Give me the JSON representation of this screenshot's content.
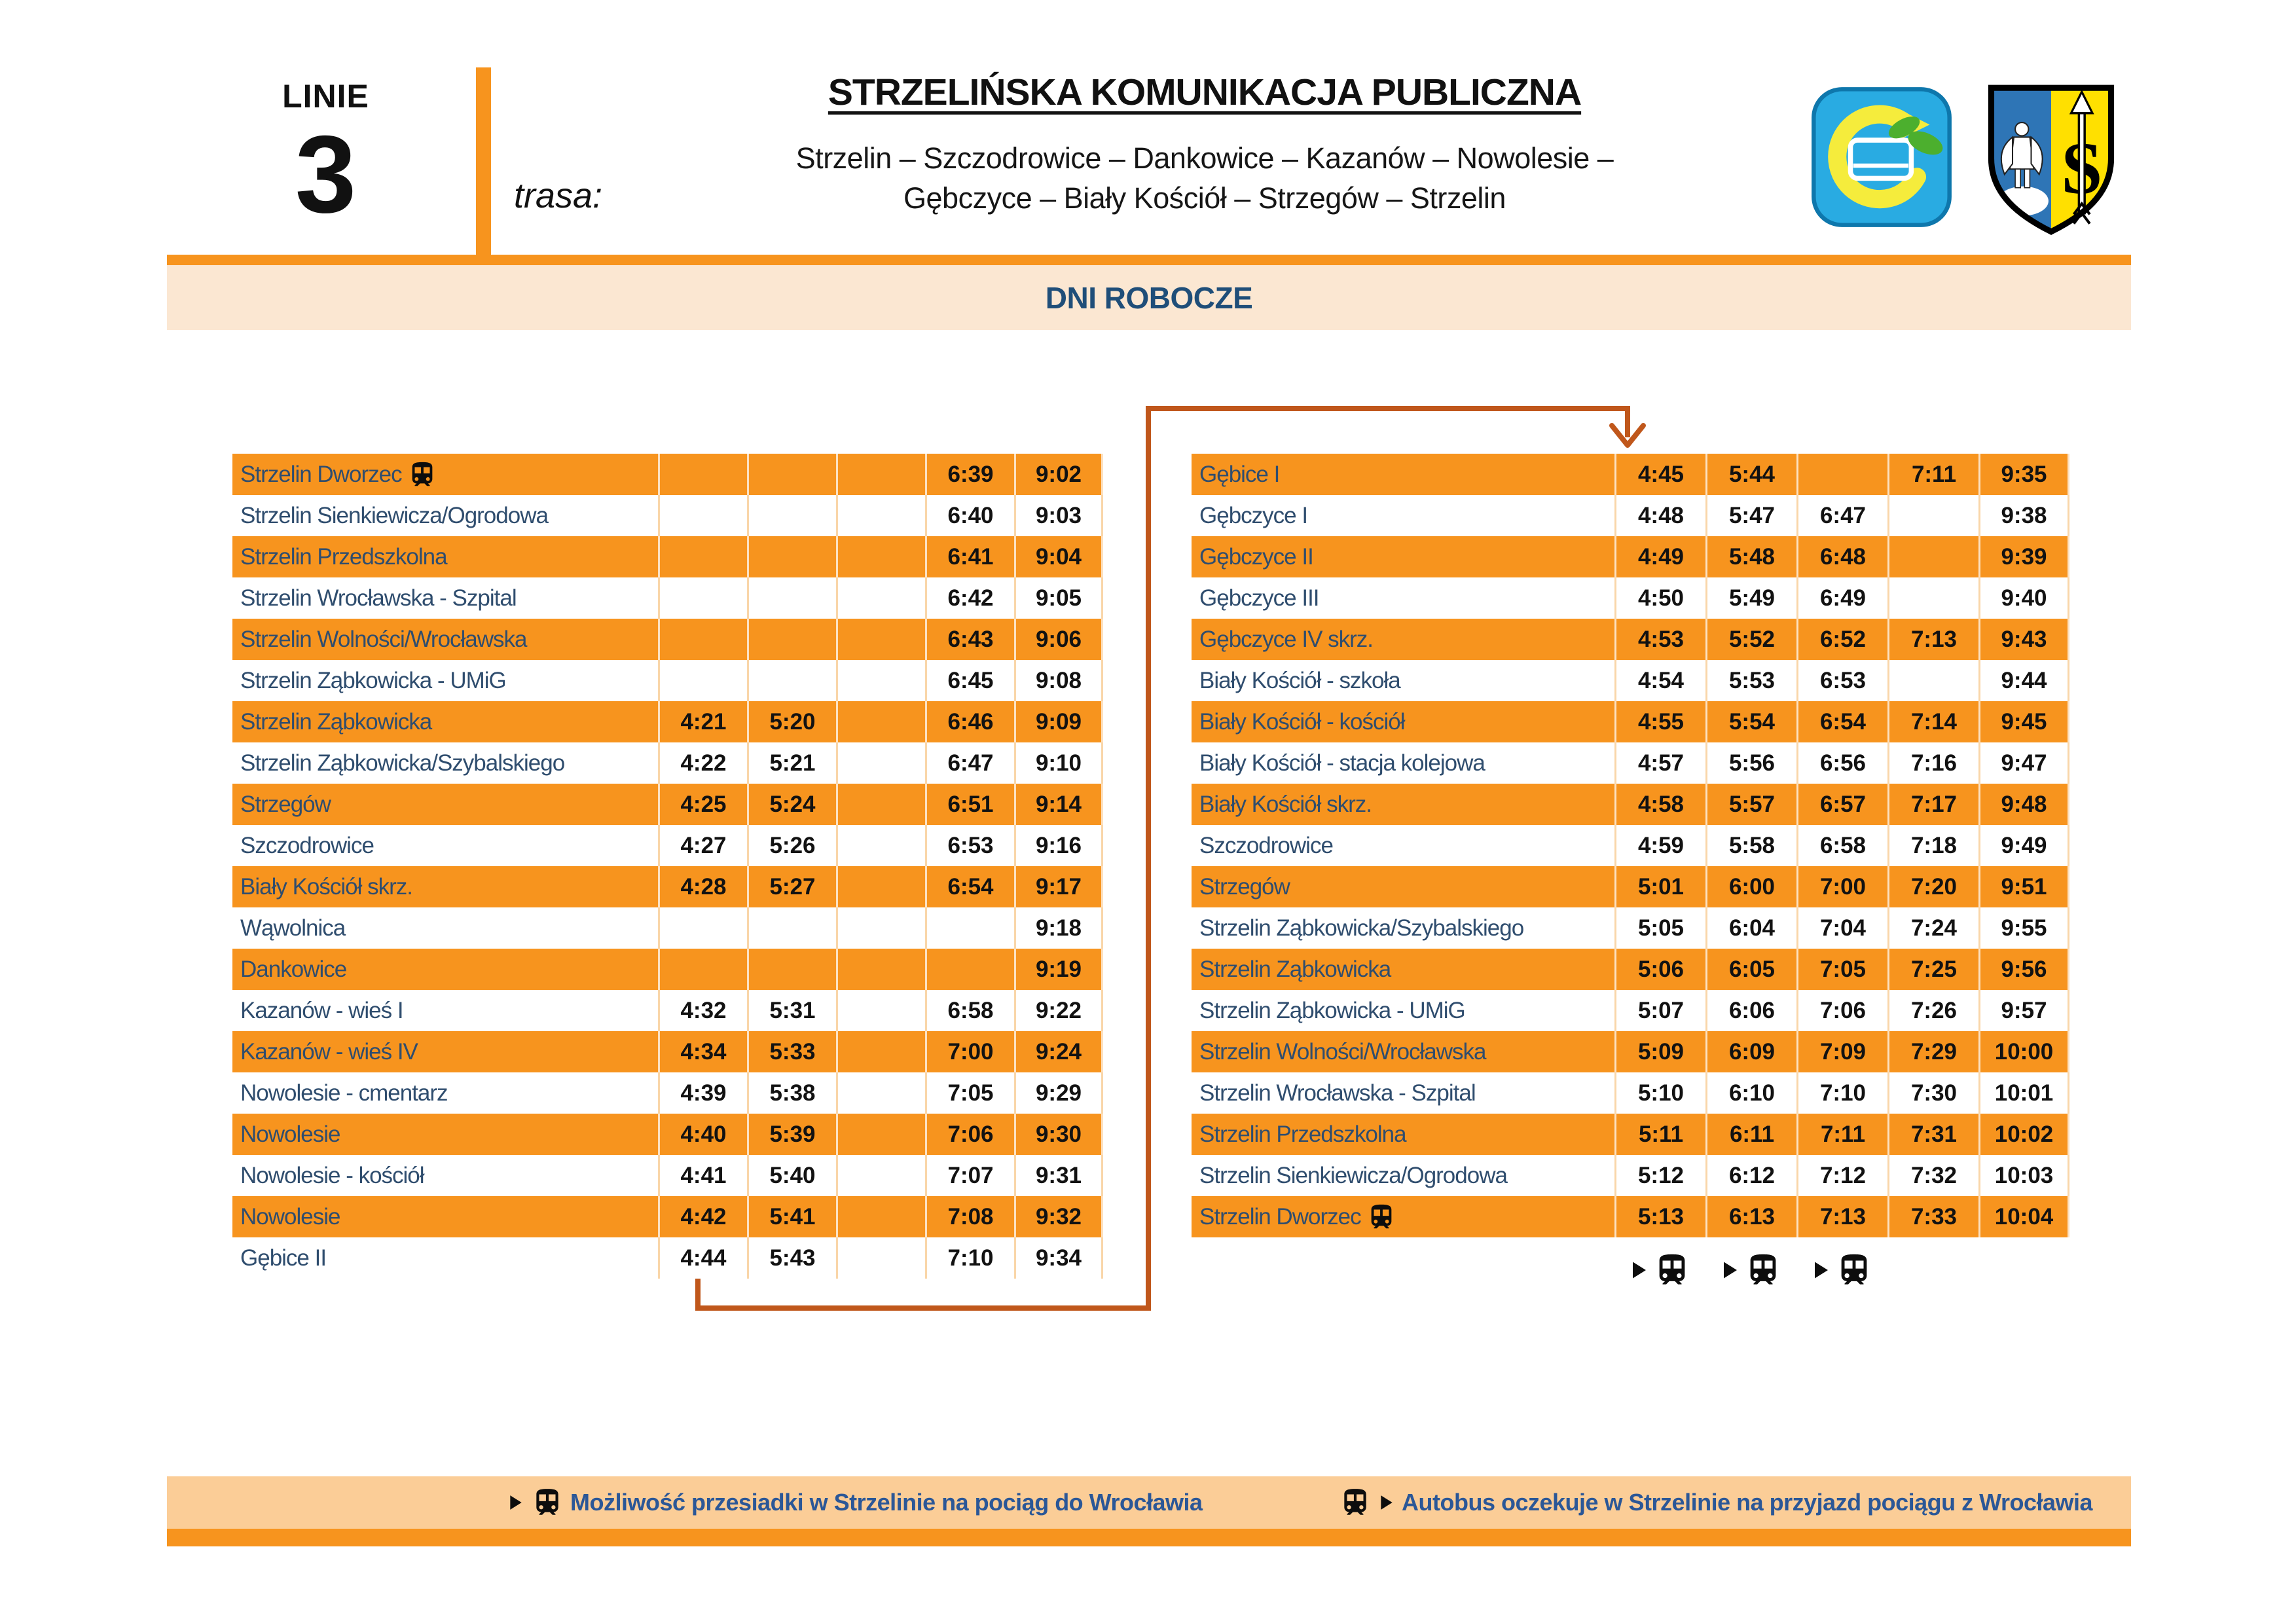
{
  "header": {
    "line_label": "LINIE",
    "line_number": "3",
    "trasa_label": "trasa:",
    "title": "STRZELIŃSKA KOMUNIKACJA PUBLICZNA",
    "route_line1": "Strzelin – Szczodrowice – Dankowice – Kazanów – Nowolesie –",
    "route_line2": "Gębczyce – Biały Kościół – Strzegów – Strzelin",
    "logos": [
      "company-bus-eco-logo",
      "strzelin-coat-of-arms"
    ]
  },
  "banner": {
    "label": "DNI ROBOCZE"
  },
  "colors": {
    "accent_orange": "#F7941E",
    "banner_bg": "#FBE7D2",
    "legend_bg": "#FBCD97",
    "connector": "#C0571B",
    "stop_text": "#2F4D6E",
    "banner_text": "#1F4E79",
    "legend_text": "#2B5797"
  },
  "tables": {
    "left": {
      "rows": [
        {
          "stop": "Strzelin Dworzec",
          "icon": "train-icon",
          "times": [
            "",
            "",
            "",
            "6:39",
            "9:02"
          ]
        },
        {
          "stop": "Strzelin Sienkiewicza/Ogrodowa",
          "times": [
            "",
            "",
            "",
            "6:40",
            "9:03"
          ]
        },
        {
          "stop": "Strzelin Przedszkolna",
          "times": [
            "",
            "",
            "",
            "6:41",
            "9:04"
          ]
        },
        {
          "stop": "Strzelin Wrocławska - Szpital",
          "times": [
            "",
            "",
            "",
            "6:42",
            "9:05"
          ]
        },
        {
          "stop": "Strzelin Wolności/Wrocławska",
          "times": [
            "",
            "",
            "",
            "6:43",
            "9:06"
          ]
        },
        {
          "stop": "Strzelin Ząbkowicka - UMiG",
          "times": [
            "",
            "",
            "",
            "6:45",
            "9:08"
          ]
        },
        {
          "stop": "Strzelin Ząbkowicka",
          "times": [
            "4:21",
            "5:20",
            "",
            "6:46",
            "9:09"
          ]
        },
        {
          "stop": "Strzelin Ząbkowicka/Szybalskiego",
          "times": [
            "4:22",
            "5:21",
            "",
            "6:47",
            "9:10"
          ]
        },
        {
          "stop": "Strzegów",
          "times": [
            "4:25",
            "5:24",
            "",
            "6:51",
            "9:14"
          ]
        },
        {
          "stop": "Szczodrowice",
          "times": [
            "4:27",
            "5:26",
            "",
            "6:53",
            "9:16"
          ]
        },
        {
          "stop": "Biały Kościół skrz.",
          "times": [
            "4:28",
            "5:27",
            "",
            "6:54",
            "9:17"
          ]
        },
        {
          "stop": "Wąwolnica",
          "times": [
            "",
            "",
            "",
            "",
            "9:18"
          ]
        },
        {
          "stop": "Dankowice",
          "times": [
            "",
            "",
            "",
            "",
            "9:19"
          ]
        },
        {
          "stop": "Kazanów - wieś I",
          "times": [
            "4:32",
            "5:31",
            "",
            "6:58",
            "9:22"
          ]
        },
        {
          "stop": "Kazanów - wieś IV",
          "times": [
            "4:34",
            "5:33",
            "",
            "7:00",
            "9:24"
          ]
        },
        {
          "stop": "Nowolesie - cmentarz",
          "times": [
            "4:39",
            "5:38",
            "",
            "7:05",
            "9:29"
          ]
        },
        {
          "stop": "Nowolesie",
          "times": [
            "4:40",
            "5:39",
            "",
            "7:06",
            "9:30"
          ]
        },
        {
          "stop": "Nowolesie - kościół",
          "times": [
            "4:41",
            "5:40",
            "",
            "7:07",
            "9:31"
          ]
        },
        {
          "stop": "Nowolesie",
          "times": [
            "4:42",
            "5:41",
            "",
            "7:08",
            "9:32"
          ]
        },
        {
          "stop": "Gębice II",
          "times": [
            "4:44",
            "5:43",
            "",
            "7:10",
            "9:34"
          ]
        }
      ]
    },
    "right": {
      "rows": [
        {
          "stop": "Gębice I",
          "times": [
            "4:45",
            "5:44",
            "",
            "7:11",
            "9:35"
          ]
        },
        {
          "stop": "Gębczyce I",
          "times": [
            "4:48",
            "5:47",
            "6:47",
            "",
            "9:38"
          ]
        },
        {
          "stop": "Gębczyce II",
          "times": [
            "4:49",
            "5:48",
            "6:48",
            "",
            "9:39"
          ]
        },
        {
          "stop": "Gębczyce III",
          "times": [
            "4:50",
            "5:49",
            "6:49",
            "",
            "9:40"
          ]
        },
        {
          "stop": "Gębczyce IV skrz.",
          "times": [
            "4:53",
            "5:52",
            "6:52",
            "7:13",
            "9:43"
          ]
        },
        {
          "stop": "Biały Kościół - szkoła",
          "times": [
            "4:54",
            "5:53",
            "6:53",
            "",
            "9:44"
          ]
        },
        {
          "stop": "Biały Kościół - kościół",
          "times": [
            "4:55",
            "5:54",
            "6:54",
            "7:14",
            "9:45"
          ]
        },
        {
          "stop": "Biały Kościół - stacja kolejowa",
          "times": [
            "4:57",
            "5:56",
            "6:56",
            "7:16",
            "9:47"
          ]
        },
        {
          "stop": "Biały Kościół skrz.",
          "times": [
            "4:58",
            "5:57",
            "6:57",
            "7:17",
            "9:48"
          ]
        },
        {
          "stop": "Szczodrowice",
          "times": [
            "4:59",
            "5:58",
            "6:58",
            "7:18",
            "9:49"
          ]
        },
        {
          "stop": "Strzegów",
          "times": [
            "5:01",
            "6:00",
            "7:00",
            "7:20",
            "9:51"
          ]
        },
        {
          "stop": "Strzelin Ząbkowicka/Szybalskiego",
          "times": [
            "5:05",
            "6:04",
            "7:04",
            "7:24",
            "9:55"
          ]
        },
        {
          "stop": "Strzelin Ząbkowicka",
          "times": [
            "5:06",
            "6:05",
            "7:05",
            "7:25",
            "9:56"
          ]
        },
        {
          "stop": "Strzelin Ząbkowicka - UMiG",
          "times": [
            "5:07",
            "6:06",
            "7:06",
            "7:26",
            "9:57"
          ]
        },
        {
          "stop": "Strzelin Wolności/Wrocławska",
          "times": [
            "5:09",
            "6:09",
            "7:09",
            "7:29",
            "10:00"
          ]
        },
        {
          "stop": "Strzelin Wrocławska - Szpital",
          "times": [
            "5:10",
            "6:10",
            "7:10",
            "7:30",
            "10:01"
          ]
        },
        {
          "stop": "Strzelin Przedszkolna",
          "times": [
            "5:11",
            "6:11",
            "7:11",
            "7:31",
            "10:02"
          ]
        },
        {
          "stop": "Strzelin Sienkiewicza/Ogrodowa",
          "times": [
            "5:12",
            "6:12",
            "7:12",
            "7:32",
            "10:03"
          ]
        },
        {
          "stop": "Strzelin Dworzec",
          "icon": "train-icon",
          "times": [
            "5:13",
            "6:13",
            "7:13",
            "7:33",
            "10:04"
          ]
        }
      ],
      "departure_icons": [
        true,
        true,
        true,
        false,
        false
      ]
    }
  },
  "legend": {
    "item1": "Możliwość przesiadki w Strzelinie na pociąg do Wrocławia",
    "item1_icons": [
      "play-icon",
      "train-icon"
    ],
    "item2": "Autobus oczekuje w Strzelinie na przyjazd pociągu z Wrocławia",
    "item2_icons": [
      "train-icon",
      "play-icon"
    ]
  }
}
